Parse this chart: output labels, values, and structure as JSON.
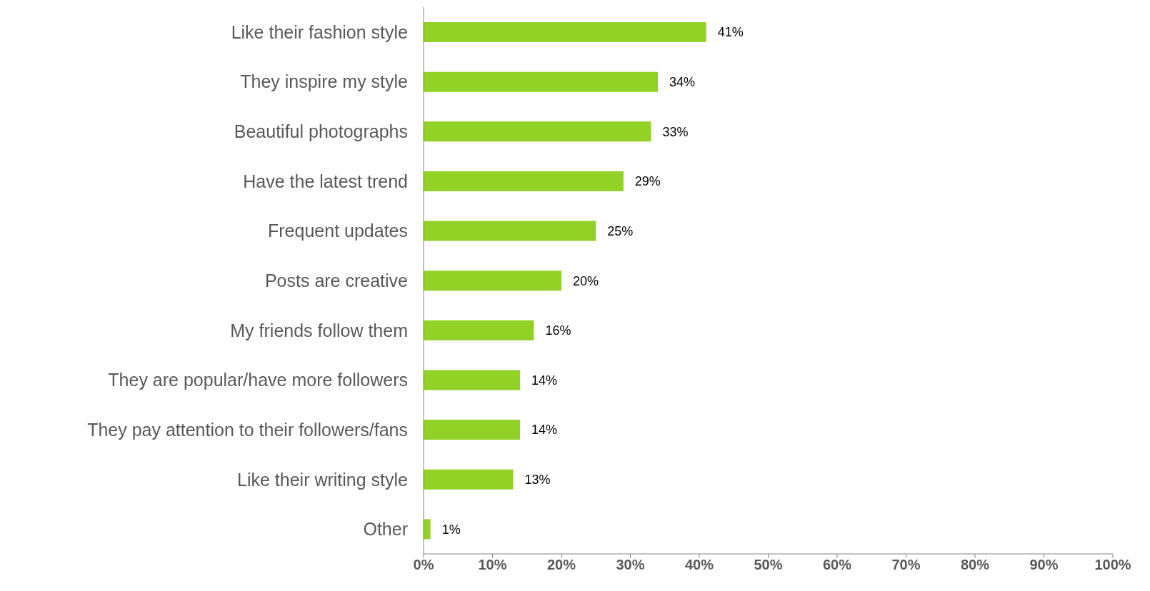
{
  "chart_data": {
    "type": "bar",
    "orientation": "horizontal",
    "categories": [
      "Like their fashion style",
      "They inspire my style",
      "Beautiful photographs",
      "Have the latest trend",
      "Frequent updates",
      "Posts are creative",
      "My friends follow them",
      "They are popular/have more followers",
      "They pay attention to their followers/fans",
      "Like their writing style",
      "Other"
    ],
    "values": [
      41,
      34,
      33,
      29,
      25,
      20,
      16,
      14,
      14,
      13,
      1
    ],
    "value_labels": [
      "41%",
      "34%",
      "33%",
      "29%",
      "25%",
      "20%",
      "16%",
      "14%",
      "14%",
      "13%",
      "1%"
    ],
    "color": "#92d125",
    "xlim": [
      0,
      100
    ],
    "xticks": [
      {
        "value": 0,
        "label": "0%"
      },
      {
        "value": 10,
        "label": "10%"
      },
      {
        "value": 20,
        "label": "20%"
      },
      {
        "value": 30,
        "label": "30%"
      },
      {
        "value": 40,
        "label": "40%"
      },
      {
        "value": 50,
        "label": "50%"
      },
      {
        "value": 60,
        "label": "60%"
      },
      {
        "value": 70,
        "label": "70%"
      },
      {
        "value": 80,
        "label": "80%"
      },
      {
        "value": 90,
        "label": "90%"
      },
      {
        "value": 100,
        "label": "100%"
      }
    ],
    "grid": false,
    "legend": false
  }
}
